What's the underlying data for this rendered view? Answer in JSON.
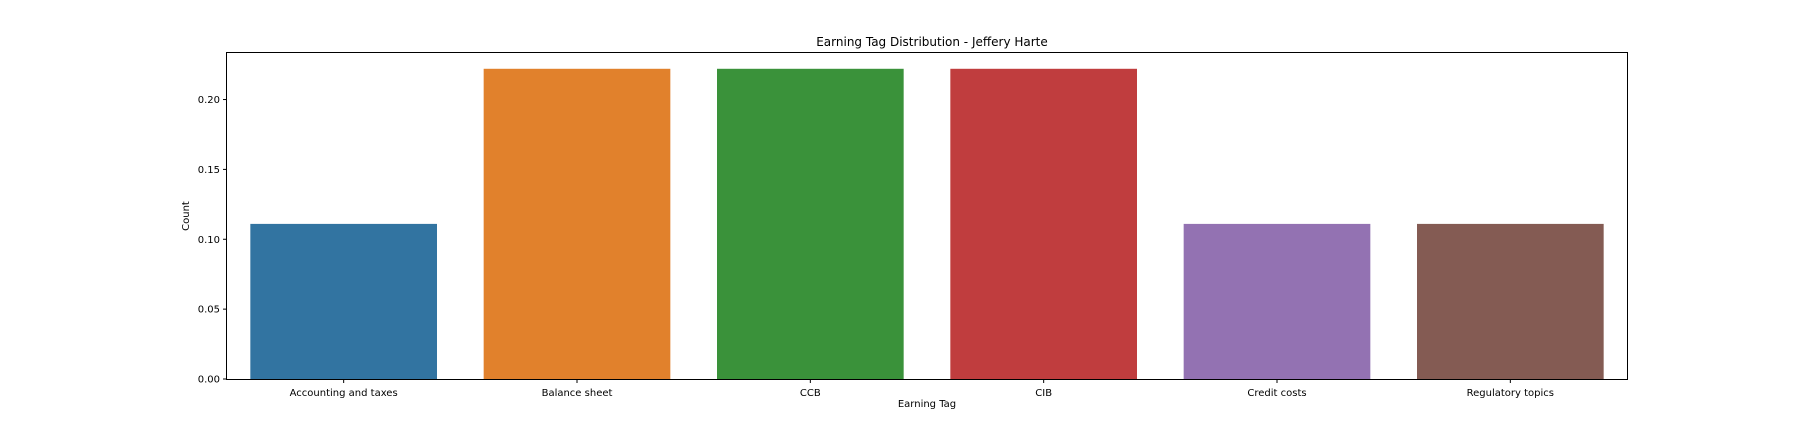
{
  "chart_data": {
    "type": "bar",
    "title": "Earning Tag Distribution - Jeffery Harte",
    "xlabel": "Earning Tag",
    "ylabel": "Count",
    "categories": [
      "Accounting and taxes",
      "Balance sheet",
      "CCB",
      "CIB",
      "Credit costs",
      "Regulatory topics"
    ],
    "values": [
      0.111,
      0.222,
      0.222,
      0.222,
      0.111,
      0.111
    ],
    "colors": [
      "#3274a1",
      "#e1812c",
      "#3a923a",
      "#c03d3e",
      "#9372b2",
      "#845b53"
    ],
    "ylim": [
      0,
      0.2333
    ],
    "yticks": [
      0.0,
      0.05,
      0.1,
      0.15,
      0.2
    ],
    "ytick_labels": [
      "0.00",
      "0.05",
      "0.10",
      "0.15",
      "0.20"
    ],
    "grid": false,
    "legend": "none"
  }
}
